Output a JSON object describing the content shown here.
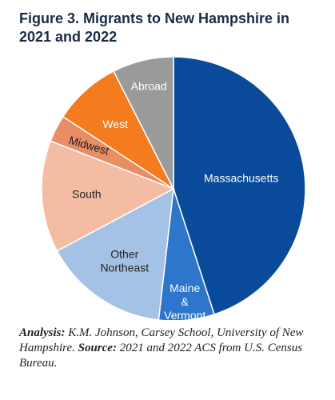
{
  "figure": {
    "title": "Figure 3. Migrants to New Hampshire in 2021 and 2022"
  },
  "note": {
    "analysis_label": "Analysis:",
    "analysis_text": "K.M. Johnson, Carsey School, University of New Hampshire.",
    "source_label": "Source:",
    "source_text": "2021 and 2022 ACS from U.S. Census Bureau."
  },
  "chart_data": {
    "type": "pie",
    "title": "Figure 3. Migrants to New Hampshire in 2021 and 2022",
    "start": "top, clockwise",
    "slices": [
      {
        "label": "Massachusetts",
        "lines": [
          "Massachusetts"
        ],
        "value": 45.0,
        "color": "#0a4a9a",
        "text": "light"
      },
      {
        "label": "Maine & Vermont",
        "lines": [
          "Maine",
          "&",
          "Vermont"
        ],
        "value": 6.8,
        "color": "#2d76cc",
        "text": "light"
      },
      {
        "label": "Other Northeast",
        "lines": [
          "Other",
          "Northeast"
        ],
        "value": 15.4,
        "color": "#a4c2e6",
        "text": "dark"
      },
      {
        "label": "South",
        "lines": [
          "South"
        ],
        "value": 13.7,
        "color": "#f4bda3",
        "text": "dark"
      },
      {
        "label": "Midwest",
        "lines": [
          "Midwest"
        ],
        "value": 3.3,
        "color": "#e88d64",
        "text": "dark"
      },
      {
        "label": "West",
        "lines": [
          "West"
        ],
        "value": 8.3,
        "color": "#f47b1e",
        "text": "light"
      },
      {
        "label": "Abroad",
        "lines": [
          "Abroad"
        ],
        "value": 7.5,
        "color": "#9a9a9a",
        "text": "light"
      }
    ]
  }
}
